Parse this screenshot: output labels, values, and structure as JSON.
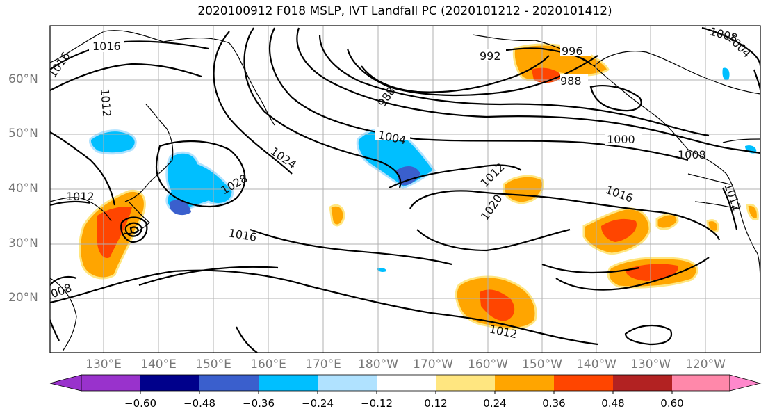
{
  "title": "2020100912 F018 MSLP, IVT Landfall PC (2020101212 - 2020101412)",
  "lat_labels": [
    "60°N",
    "50°N",
    "40°N",
    "30°N",
    "20°N"
  ],
  "lon_labels": [
    "130°E",
    "140°E",
    "150°E",
    "160°E",
    "170°E",
    "180°W",
    "170°W",
    "160°W",
    "150°W",
    "140°W",
    "130°W",
    "120°W"
  ],
  "contour_labels": [
    "1016",
    "1016",
    "1012",
    "992",
    "996",
    "988",
    "988",
    "1004",
    "1000",
    "1008",
    "1008",
    "1004",
    "1024",
    "1028",
    "1012",
    "1016",
    "1020",
    "1016",
    "1012",
    "1012",
    "1008",
    "1012"
  ],
  "colorbar": {
    "ticks": [
      "−0.60",
      "−0.48",
      "−0.36",
      "−0.24",
      "−0.12",
      "0.12",
      "0.24",
      "0.36",
      "0.48",
      "0.60"
    ],
    "colors": [
      "#9932cc",
      "#00008b",
      "#3a5fcd",
      "#00bfff",
      "#b0e2ff",
      "#ffffff",
      "#ffe680",
      "#ffa500",
      "#ff4500",
      "#b22222",
      "#ff88aa",
      "#ff88cc"
    ]
  }
}
